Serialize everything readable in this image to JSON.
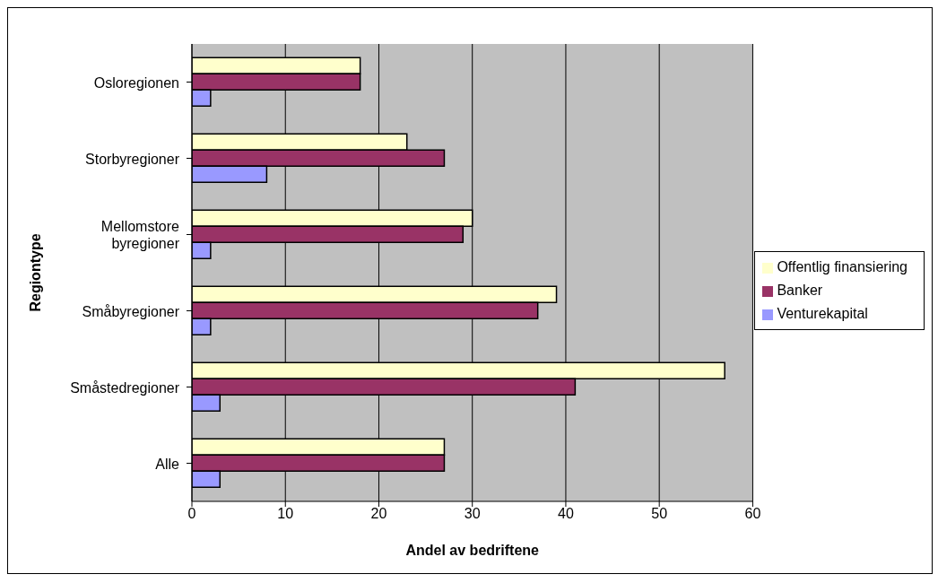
{
  "chart_data": {
    "type": "bar",
    "orientation": "horizontal",
    "xlabel": "Andel av bedriftene",
    "ylabel": "Regiontype",
    "categories": [
      "Osloregionen",
      "Storbyregioner",
      "Mellomstore byregioner",
      "Småbyregioner",
      "Småstedregioner",
      "Alle"
    ],
    "series": [
      {
        "name": "Offentlig finansiering",
        "color": "#ffffcc",
        "values": [
          18,
          23,
          30,
          39,
          57,
          27
        ]
      },
      {
        "name": "Banker",
        "color": "#993366",
        "values": [
          18,
          27,
          29,
          37,
          41,
          27
        ]
      },
      {
        "name": "Venturekapital",
        "color": "#9999ff",
        "values": [
          2,
          8,
          2,
          2,
          3,
          3
        ]
      }
    ],
    "xlim": [
      0,
      60
    ],
    "xticks": [
      0,
      10,
      20,
      30,
      40,
      50,
      60
    ],
    "grid": "x",
    "legend": "right"
  }
}
